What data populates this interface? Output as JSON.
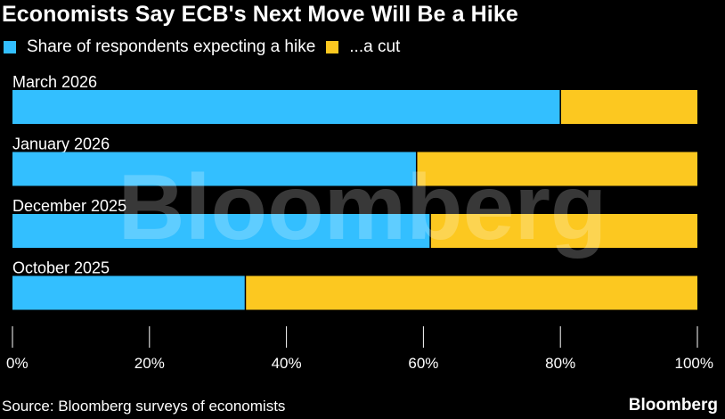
{
  "title": "Economists Say ECB's Next Move Will Be a Hike",
  "colors": {
    "hike": "#33bfff",
    "cut": "#fcc820",
    "background": "#000000",
    "text": "#ffffff"
  },
  "legend": [
    {
      "label": "Share of respondents expecting a hike",
      "color": "#33bfff"
    },
    {
      "label": "...a cut",
      "color": "#fcc820"
    }
  ],
  "chart_data": {
    "type": "bar",
    "orientation": "horizontal",
    "stacked": true,
    "categories": [
      "March 2026",
      "January 2026",
      "December 2025",
      "October 2025"
    ],
    "series": [
      {
        "name": "Share of respondents expecting a hike",
        "values": [
          80,
          59,
          61,
          34
        ]
      },
      {
        "name": "...a cut",
        "values": [
          20,
          41,
          39,
          66
        ]
      }
    ],
    "xlim": [
      0,
      100
    ],
    "xticks": [
      "0%",
      "20%",
      "40%",
      "60%",
      "80%",
      "100%"
    ],
    "grid": false,
    "legend_position": "top-left"
  },
  "watermark": "Bloomberg",
  "source": "Source: Bloomberg surveys of economists",
  "brand": "Bloomberg"
}
